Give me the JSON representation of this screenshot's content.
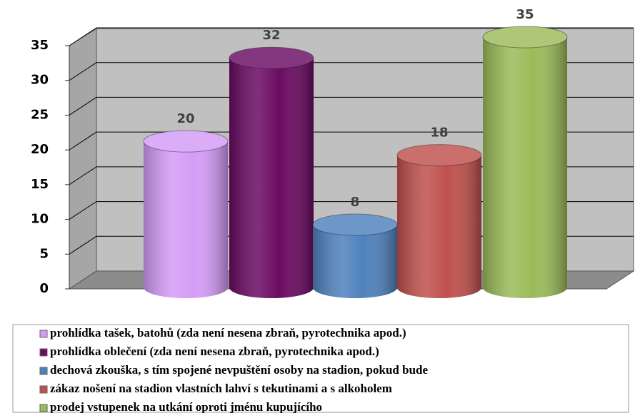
{
  "chart_data": {
    "type": "bar",
    "series": [
      {
        "name": "prohlídka tašek, batohů (zda není nesena zbraň, pyrotechnika apod.)",
        "color": "#d49cf7",
        "values": [
          20
        ]
      },
      {
        "name": "prohlídka oblečení (zda není nesena zbraň, pyrotechnika apod.)",
        "color": "#6a0a62",
        "values": [
          32
        ]
      },
      {
        "name": "dechová zkouška, s tím spojené nevpuštění osoby na stadion, pokud bude",
        "color": "#4f81bd",
        "values": [
          8
        ]
      },
      {
        "name": "zákaz nošení na stadion vlastních lahví s tekutinami a s alkoholem",
        "color": "#c0504d",
        "values": [
          18
        ]
      },
      {
        "name": "prodej vstupenek na utkání oproti jménu kupujícího",
        "color": "#9bbb59",
        "values": [
          35
        ]
      }
    ],
    "ylim": [
      0,
      35
    ],
    "yticks": [
      0,
      5,
      10,
      15,
      20,
      25,
      30,
      35
    ],
    "grid": true,
    "legend": "bottom"
  }
}
